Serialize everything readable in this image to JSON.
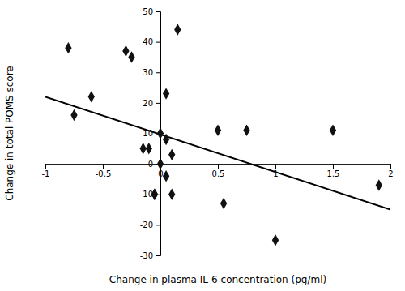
{
  "chart_data": {
    "type": "scatter",
    "xlabel": "Change in plasma IL-6 concentration (pg/ml)",
    "ylabel": "Change in total POMS score",
    "series": [
      {
        "type": "scatter",
        "marker": "diamond",
        "color": "#111111",
        "x": [
          -0.8,
          -0.75,
          -0.6,
          -0.3,
          -0.25,
          -0.15,
          -0.1,
          -0.05,
          -0.05,
          0.0,
          0.0,
          0.05,
          0.05,
          0.05,
          0.1,
          0.1,
          0.15,
          0.5,
          0.55,
          0.75,
          1.0,
          1.5,
          1.9
        ],
        "values": [
          38,
          16,
          22,
          37,
          35,
          5,
          5,
          -10,
          -10,
          10,
          0,
          8,
          23,
          -4,
          3,
          -10,
          44,
          11,
          -13,
          11,
          -25,
          11,
          -7
        ]
      },
      {
        "type": "line",
        "line_style": "solid",
        "color": "#000000",
        "x": [
          -1.0,
          2.0
        ],
        "values": [
          22.0,
          -15.0
        ]
      }
    ],
    "xlim": [
      -1.0,
      2.0
    ],
    "ylim": [
      -30,
      50
    ],
    "xticks": [
      -1,
      -0.5,
      0,
      0.5,
      1,
      1.5,
      2
    ],
    "yticks": [
      -30,
      -20,
      -10,
      0,
      10,
      20,
      30,
      40,
      50
    ],
    "grid": false
  }
}
